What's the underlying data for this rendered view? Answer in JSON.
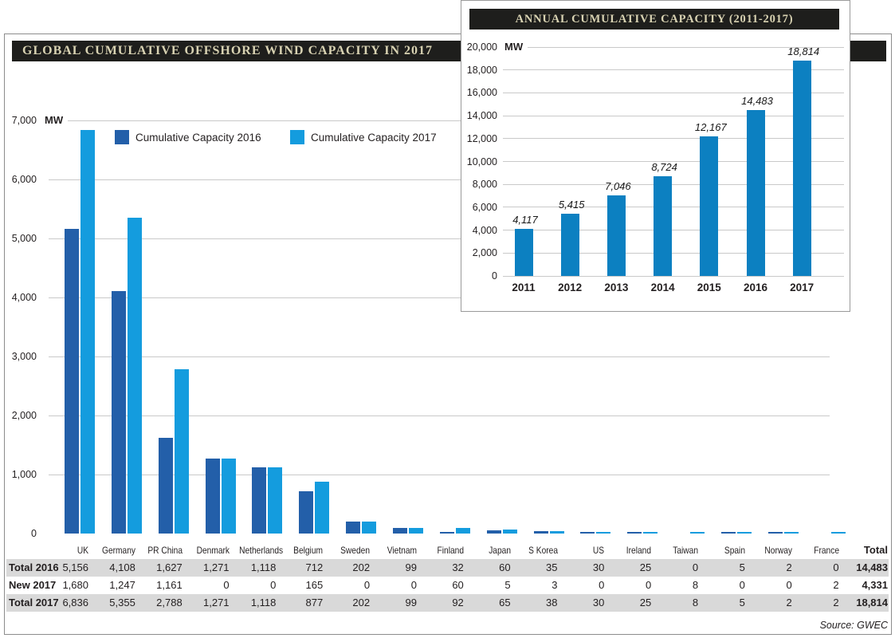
{
  "panel": {
    "title": "GLOBAL CUMULATIVE OFFSHORE WIND CAPACITY IN 2017",
    "unit": "MW",
    "source": "Source: GWEC"
  },
  "inset": {
    "title": "ANNUAL CUMULATIVE CAPACITY (2011-2017)",
    "unit": "MW"
  },
  "legend": {
    "items": [
      {
        "label": "Cumulative Capacity 2016",
        "color": "#235FA9"
      },
      {
        "label": "Cumulative Capacity 2017",
        "color": "#149CDE"
      }
    ]
  },
  "colors": {
    "bar_2016": "#235FA9",
    "bar_2017": "#149CDE",
    "inset_bar": "#0C80C1",
    "title_bar_bg": "#1E1E1C",
    "title_text": "#D8D2B2",
    "table_band": "#D9D9D9",
    "gridline": "#C9C9C9"
  },
  "chart_data": [
    {
      "type": "bar",
      "title": "GLOBAL CUMULATIVE OFFSHORE WIND CAPACITY IN 2017",
      "ylabel": "MW",
      "ylim": [
        0,
        7000
      ],
      "ytick_step": 1000,
      "yticks": [
        "0",
        "1,000",
        "2,000",
        "3,000",
        "4,000",
        "5,000",
        "6,000",
        "7,000"
      ],
      "grid": true,
      "legend_position": "top-left",
      "categories": [
        "UK",
        "Germany",
        "PR China",
        "Denmark",
        "Netherlands",
        "Belgium",
        "Sweden",
        "Vietnam",
        "Finland",
        "Japan",
        "S Korea",
        "US",
        "Ireland",
        "Taiwan",
        "Spain",
        "Norway",
        "France"
      ],
      "series": [
        {
          "name": "Cumulative Capacity 2016",
          "color": "#235FA9",
          "values": [
            5156,
            4108,
            1627,
            1271,
            1118,
            712,
            202,
            99,
            32,
            60,
            35,
            30,
            25,
            0,
            5,
            2,
            0
          ]
        },
        {
          "name": "Cumulative Capacity 2017",
          "color": "#149CDE",
          "values": [
            6836,
            5355,
            2788,
            1271,
            1118,
            877,
            202,
            99,
            92,
            65,
            38,
            30,
            25,
            8,
            5,
            2,
            2
          ]
        }
      ]
    },
    {
      "type": "bar",
      "title": "ANNUAL CUMULATIVE CAPACITY (2011-2017)",
      "ylabel": "MW",
      "ylim": [
        0,
        20000
      ],
      "ytick_step": 2000,
      "yticks": [
        "0",
        "2,000",
        "4,000",
        "6,000",
        "8,000",
        "10,000",
        "12,000",
        "14,000",
        "16,000",
        "18,000",
        "20,000"
      ],
      "grid": true,
      "value_labels": true,
      "color": "#0C80C1",
      "categories": [
        "2011",
        "2012",
        "2013",
        "2014",
        "2015",
        "2016",
        "2017"
      ],
      "values": [
        4117,
        5415,
        7046,
        8724,
        12167,
        14483,
        18814
      ]
    }
  ],
  "table": {
    "row_header": [
      "UK",
      "Germany",
      "PR China",
      "Denmark",
      "Netherlands",
      "Belgium",
      "Sweden",
      "Vietnam",
      "Finland",
      "Japan",
      "S Korea",
      "US",
      "Ireland",
      "Taiwan",
      "Spain",
      "Norway",
      "France"
    ],
    "total_header": "Total",
    "rows": [
      {
        "label": "Total 2016",
        "shaded": true,
        "values": [
          5156,
          4108,
          1627,
          1271,
          1118,
          712,
          202,
          99,
          32,
          60,
          35,
          30,
          25,
          0,
          5,
          2,
          0
        ],
        "total": 14483
      },
      {
        "label": "New 2017",
        "shaded": false,
        "values": [
          1680,
          1247,
          1161,
          0,
          0,
          165,
          0,
          0,
          60,
          5,
          3,
          0,
          0,
          8,
          0,
          0,
          2
        ],
        "total": 4331
      },
      {
        "label": "Total 2017",
        "shaded": true,
        "values": [
          6836,
          5355,
          2788,
          1271,
          1118,
          877,
          202,
          99,
          92,
          65,
          38,
          30,
          25,
          8,
          5,
          2,
          2
        ],
        "total": 18814
      }
    ]
  }
}
